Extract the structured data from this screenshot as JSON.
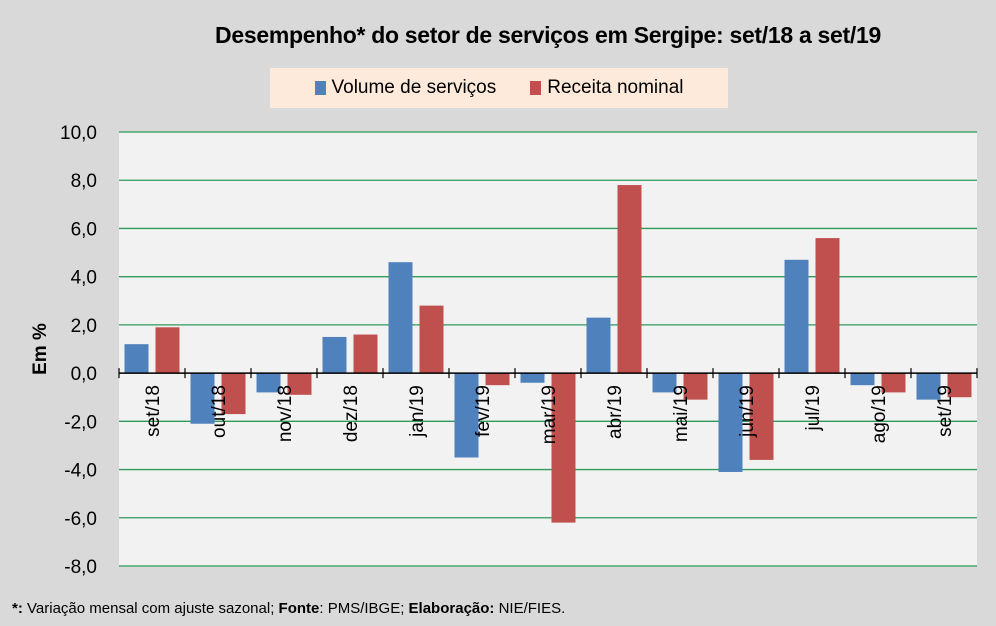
{
  "chart_data": {
    "type": "bar",
    "title": "Desempenho* do setor de serviços em Sergipe: set/18 a set/19",
    "xlabel": "",
    "ylabel": "Em %",
    "ylim": [
      -8,
      10
    ],
    "yticks": [
      10,
      8,
      6,
      4,
      2,
      0,
      -2,
      -4,
      -6,
      -8
    ],
    "ytick_labels": [
      "10,0",
      "8,0",
      "6,0",
      "4,0",
      "2,0",
      "0,0",
      "-2,0",
      "-4,0",
      "-6,0",
      "-8,0"
    ],
    "grid": true,
    "legend_position": "top-center",
    "categories": [
      "set/18",
      "out/18",
      "nov/18",
      "dez/18",
      "jan/19",
      "fev/19",
      "mar/19",
      "abr/19",
      "mai/19",
      "jun/19",
      "jul/19",
      "ago/19",
      "set/19"
    ],
    "series": [
      {
        "name": "Volume de serviços",
        "color": "#4f81bd",
        "values": [
          1.2,
          -2.1,
          -0.8,
          1.5,
          4.6,
          -3.5,
          -0.4,
          2.3,
          -0.8,
          -4.1,
          4.7,
          -0.5,
          -1.1
        ]
      },
      {
        "name": "Receita nominal",
        "color": "#c0504d",
        "values": [
          1.9,
          -1.7,
          -0.9,
          1.6,
          2.8,
          -0.5,
          -6.2,
          7.8,
          -1.1,
          -3.6,
          5.6,
          -0.8,
          -1.0
        ]
      }
    ]
  },
  "footnote": {
    "asterisk": "*:",
    "note": " Variação mensal com ajuste sazonal; ",
    "source_label": "Fonte",
    "source": ": PMS/IBGE; ",
    "credit_label": "Elaboração:",
    "credit": " NIE/FIES."
  }
}
